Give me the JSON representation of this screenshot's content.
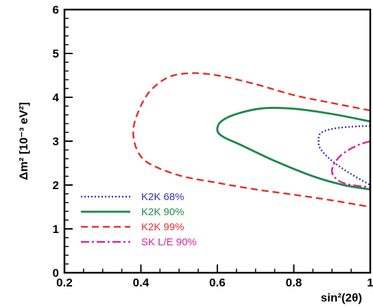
{
  "chart_data": {
    "type": "line",
    "xlabel": "sin²(2θ)",
    "ylabel": "Δm² [10⁻³ eV²]",
    "xlim": [
      0.2,
      1.0
    ],
    "ylim": [
      0,
      6
    ],
    "x_ticks": [
      "0.2",
      "0.4",
      "0.6",
      "0.8",
      "1"
    ],
    "y_ticks": [
      "0",
      "1",
      "2",
      "3",
      "4",
      "5",
      "6"
    ],
    "grid": false,
    "legend_position": "bottom-left",
    "series": [
      {
        "name": "K2K 68%",
        "color": "#3333aa",
        "style": "dotted",
        "x": [
          1.0,
          0.95,
          0.9,
          0.87,
          0.865,
          0.87,
          0.9,
          0.95,
          1.0
        ],
        "y": [
          3.35,
          3.33,
          3.28,
          3.18,
          3.0,
          2.82,
          2.55,
          2.25,
          2.0
        ]
      },
      {
        "name": "K2K 90%",
        "color": "#1f8a4c",
        "style": "solid",
        "x": [
          1.0,
          0.9,
          0.8,
          0.72,
          0.65,
          0.61,
          0.6,
          0.615,
          0.66,
          0.75,
          0.85,
          0.93,
          1.0
        ],
        "y": [
          3.45,
          3.62,
          3.74,
          3.75,
          3.62,
          3.45,
          3.25,
          3.1,
          2.92,
          2.55,
          2.2,
          2.0,
          1.9
        ]
      },
      {
        "name": "K2K 99%",
        "color": "#e62e2e",
        "style": "dashed",
        "x": [
          1.0,
          0.9,
          0.8,
          0.7,
          0.6,
          0.53,
          0.47,
          0.42,
          0.39,
          0.38,
          0.39,
          0.42,
          0.5,
          0.6,
          0.7,
          0.8,
          0.9,
          1.0
        ],
        "y": [
          3.7,
          3.87,
          4.05,
          4.3,
          4.5,
          4.55,
          4.45,
          4.1,
          3.6,
          3.2,
          2.8,
          2.5,
          2.22,
          2.05,
          1.9,
          1.78,
          1.65,
          1.5
        ]
      },
      {
        "name": "SK L/E 90%",
        "color": "#dd2299",
        "style": "dashdot",
        "x": [
          1.0,
          0.96,
          0.92,
          0.9,
          0.91,
          0.94,
          1.0
        ],
        "y": [
          3.0,
          2.88,
          2.65,
          2.35,
          2.15,
          2.02,
          1.95
        ]
      }
    ]
  }
}
